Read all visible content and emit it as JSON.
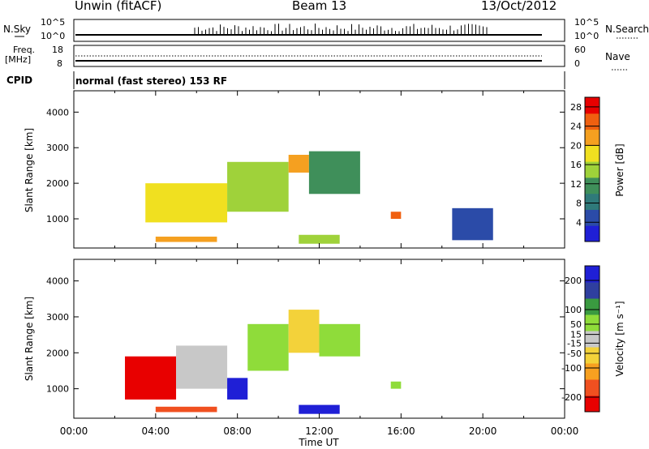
{
  "header": {
    "site": "Unwin (fitACF)",
    "beam": "Beam 13",
    "date": "13/Oct/2012"
  },
  "top_panels": {
    "nsky_label": "N.Sky",
    "nsearch_label": "N.Search",
    "noise_ticks": [
      "10^5",
      "10^0"
    ],
    "freq_label": "Freq.",
    "freq_unit": "[MHz]",
    "freq_ticks": [
      "18",
      "8"
    ],
    "nave_label": "Nave",
    "nave_ticks": [
      "60",
      "0"
    ],
    "cpid_label": "CPID",
    "cpid_value": "normal (fast stereo) 153 RF"
  },
  "colors": {
    "power_scale": [
      "#1f1fd6",
      "#2b4ba8",
      "#2f7a7a",
      "#3f8f5a",
      "#9fd23a",
      "#f0e020",
      "#f5a020",
      "#f06010",
      "#e80000"
    ],
    "velocity_scale": [
      "#e80000",
      "#f05020",
      "#f7a020",
      "#f3d23a",
      "#c8c8c8",
      "#8fdc3a",
      "#3a9a40",
      "#2f3f9f",
      "#1f1fd6"
    ]
  },
  "chart_data": [
    {
      "type": "heatmap",
      "panel": "power",
      "title": "",
      "xlabel": "Time UT",
      "ylabel": "Slant Range [km]",
      "x_ticks": [
        "00:00",
        "04:00",
        "08:00",
        "12:00",
        "16:00",
        "20:00",
        "00:00"
      ],
      "xlim_hours": [
        0,
        24
      ],
      "y_ticks": [
        1000,
        2000,
        3000,
        4000
      ],
      "ylim": [
        180,
        4600
      ],
      "colorbar": {
        "label": "Power [dB]",
        "ticks": [
          4,
          8,
          12,
          16,
          20,
          24,
          28
        ],
        "range": [
          0,
          30
        ]
      },
      "regions": [
        {
          "t": [
            3.5,
            7.5
          ],
          "r": [
            900,
            2000
          ],
          "value": 18
        },
        {
          "t": [
            7.5,
            10.5
          ],
          "r": [
            1200,
            2600
          ],
          "value": 16
        },
        {
          "t": [
            10.5,
            11.5
          ],
          "r": [
            2300,
            2800
          ],
          "value": 20
        },
        {
          "t": [
            11.5,
            14.0
          ],
          "r": [
            1700,
            2900
          ],
          "value": 12
        },
        {
          "t": [
            15.5,
            16.0
          ],
          "r": [
            1000,
            1200
          ],
          "value": 24
        },
        {
          "t": [
            4.0,
            7.0
          ],
          "r": [
            350,
            500
          ],
          "value": 20
        },
        {
          "t": [
            11.0,
            13.0
          ],
          "r": [
            300,
            550
          ],
          "value": 14
        },
        {
          "t": [
            18.5,
            20.5
          ],
          "r": [
            400,
            1300
          ],
          "value": 6
        }
      ]
    },
    {
      "type": "heatmap",
      "panel": "velocity",
      "title": "",
      "xlabel": "Time UT",
      "ylabel": "Slant Range [km]",
      "x_ticks": [
        "00:00",
        "04:00",
        "08:00",
        "12:00",
        "16:00",
        "20:00",
        "00:00"
      ],
      "xlim_hours": [
        0,
        24
      ],
      "y_ticks": [
        1000,
        2000,
        3000,
        4000
      ],
      "ylim": [
        180,
        4600
      ],
      "colorbar": {
        "label": "Velocity [m s⁻¹]",
        "ticks": [
          200,
          100,
          50,
          15,
          -15,
          -50,
          -100,
          -200
        ],
        "range": [
          -250,
          250
        ]
      },
      "regions": [
        {
          "t": [
            2.5,
            5.0
          ],
          "r": [
            700,
            1900
          ],
          "value": -200
        },
        {
          "t": [
            4.0,
            7.0
          ],
          "r": [
            350,
            500
          ],
          "value": -150
        },
        {
          "t": [
            5.0,
            7.5
          ],
          "r": [
            1000,
            2200
          ],
          "value": 0
        },
        {
          "t": [
            7.5,
            8.5
          ],
          "r": [
            700,
            1300
          ],
          "value": 220
        },
        {
          "t": [
            8.5,
            10.5
          ],
          "r": [
            1500,
            2800
          ],
          "value": 30
        },
        {
          "t": [
            10.5,
            12.0
          ],
          "r": [
            2000,
            3200
          ],
          "value": -60
        },
        {
          "t": [
            12.0,
            14.0
          ],
          "r": [
            1900,
            2800
          ],
          "value": 40
        },
        {
          "t": [
            15.5,
            16.0
          ],
          "r": [
            1000,
            1200
          ],
          "value": 40
        },
        {
          "t": [
            11.0,
            13.0
          ],
          "r": [
            300,
            550
          ],
          "value": 200
        }
      ]
    }
  ]
}
